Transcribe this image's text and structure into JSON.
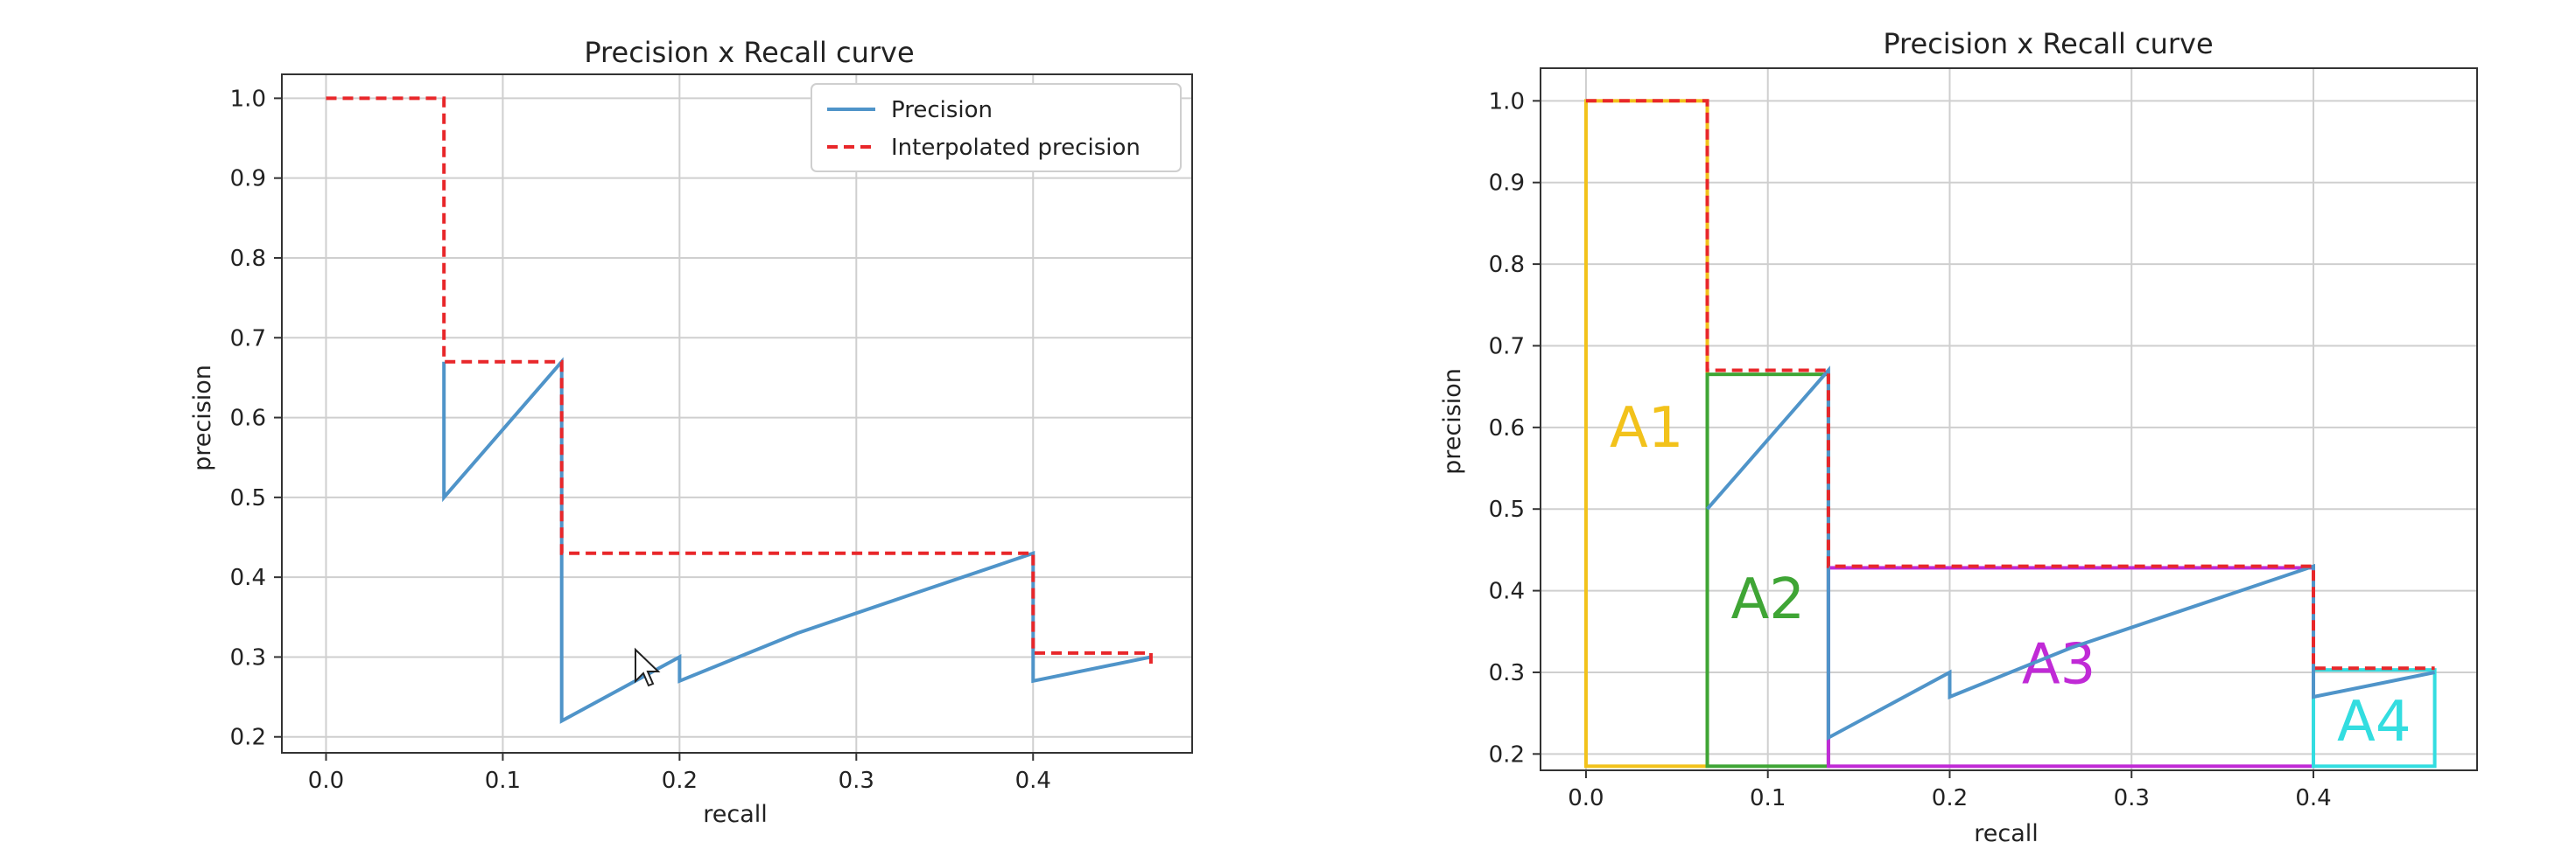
{
  "chart_data": [
    {
      "type": "line",
      "title": "Precision x Recall curve",
      "xlabel": "recall",
      "ylabel": "precision",
      "xlim": [
        -0.025,
        0.49
      ],
      "ylim": [
        0.18,
        1.03
      ],
      "xticks": [
        "0.0",
        "0.1",
        "0.2",
        "0.3",
        "0.4"
      ],
      "yticks": [
        "0.2",
        "0.3",
        "0.4",
        "0.5",
        "0.6",
        "0.7",
        "0.8",
        "0.9",
        "1.0"
      ],
      "grid": true,
      "legend": {
        "placement": "top-right",
        "entries": [
          "Precision",
          "Interpolated precision"
        ]
      },
      "series": [
        {
          "name": "Precision",
          "style": "solid",
          "color": "#4f94c9",
          "x": [
            0.0667,
            0.0667,
            0.1333,
            0.1333,
            0.2,
            0.2,
            0.2667,
            0.3333,
            0.4,
            0.4,
            0.4667
          ],
          "y": [
            0.67,
            0.5,
            0.67,
            0.22,
            0.3,
            0.27,
            0.33,
            0.38,
            0.43,
            0.27,
            0.3
          ]
        },
        {
          "name": "Interpolated precision",
          "style": "dashed",
          "color": "#e8272a",
          "x": [
            0.0,
            0.0667,
            0.0667,
            0.1333,
            0.1333,
            0.4,
            0.4,
            0.4667,
            0.4667
          ],
          "y": [
            1.0,
            1.0,
            0.67,
            0.67,
            0.43,
            0.43,
            0.305,
            0.305,
            0.29
          ]
        }
      ]
    },
    {
      "type": "line",
      "title": "Precision x Recall curve",
      "xlabel": "recall",
      "ylabel": "precision",
      "xlim": [
        -0.025,
        0.49
      ],
      "ylim": [
        0.18,
        1.04
      ],
      "xticks": [
        "0.0",
        "0.1",
        "0.2",
        "0.3",
        "0.4"
      ],
      "yticks": [
        "0.2",
        "0.3",
        "0.4",
        "0.5",
        "0.6",
        "0.7",
        "0.8",
        "0.9",
        "1.0"
      ],
      "grid": true,
      "series": [
        {
          "style": "solid",
          "color": "#4f94c9",
          "x": [
            0.0667,
            0.1333,
            0.1333,
            0.2,
            0.2,
            0.2667,
            0.3333,
            0.4,
            0.4,
            0.4667
          ],
          "y": [
            0.5,
            0.67,
            0.22,
            0.3,
            0.27,
            0.33,
            0.38,
            0.43,
            0.27,
            0.3
          ]
        },
        {
          "style": "dashed",
          "color": "#e8272a",
          "x": [
            0.0,
            0.0667,
            0.0667,
            0.1333,
            0.1333,
            0.4,
            0.4,
            0.4667
          ],
          "y": [
            1.0,
            1.0,
            0.67,
            0.67,
            0.43,
            0.43,
            0.305,
            0.305
          ]
        }
      ],
      "areas": [
        {
          "label": "A1",
          "color": "#f2c21b",
          "x0": 0.0,
          "x1": 0.0667,
          "y0": 0.185,
          "y1": 1.0
        },
        {
          "label": "A2",
          "color": "#3fa535",
          "x0": 0.0667,
          "x1": 0.1333,
          "y0": 0.185,
          "y1": 0.665
        },
        {
          "label": "A3",
          "color": "#c02ad6",
          "x0": 0.1333,
          "x1": 0.4,
          "y0": 0.185,
          "y1": 0.428
        },
        {
          "label": "A4",
          "color": "#33dde0",
          "x0": 0.4,
          "x1": 0.4667,
          "y0": 0.185,
          "y1": 0.303
        }
      ]
    }
  ]
}
